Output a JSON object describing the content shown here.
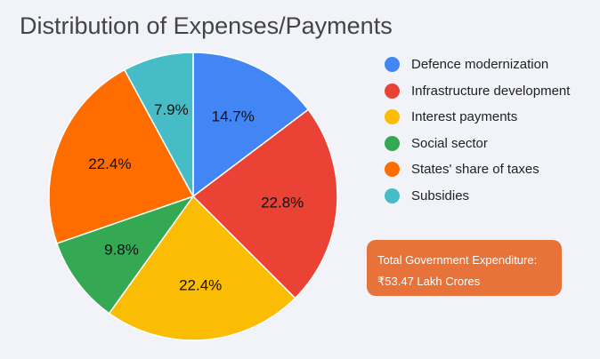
{
  "chart_data": {
    "type": "pie",
    "title": "Distribution of Expenses/Payments",
    "categories": [
      "Defence modernization",
      "Infrastructure development",
      "Interest payments",
      "Social sector",
      "States' share of taxes",
      "Subsidies"
    ],
    "values": [
      14.7,
      22.8,
      22.4,
      9.8,
      22.4,
      7.9
    ],
    "labels": [
      "14.7%",
      "22.8%",
      "22.4%",
      "9.8%",
      "22.4%",
      "7.9%"
    ],
    "colors": [
      "#4285f4",
      "#ea4335",
      "#fbbc04",
      "#34a853",
      "#ff6d01",
      "#46bdc6"
    ],
    "legend_position": "right"
  },
  "legend": [
    {
      "label": "Defence modernization",
      "color": "#4285f4"
    },
    {
      "label": "Infrastructure development",
      "color": "#ea4335"
    },
    {
      "label": "Interest payments",
      "color": "#fbbc04"
    },
    {
      "label": "Social sector",
      "color": "#34a853"
    },
    {
      "label": "States' share of taxes",
      "color": "#ff6d01"
    },
    {
      "label": "Subsidies",
      "color": "#46bdc6"
    }
  ],
  "total": {
    "label": "Total Government Expenditure:",
    "value": "₹53.47 Lakh Crores",
    "color": "#e8733a"
  },
  "background": "#f1f3f9"
}
